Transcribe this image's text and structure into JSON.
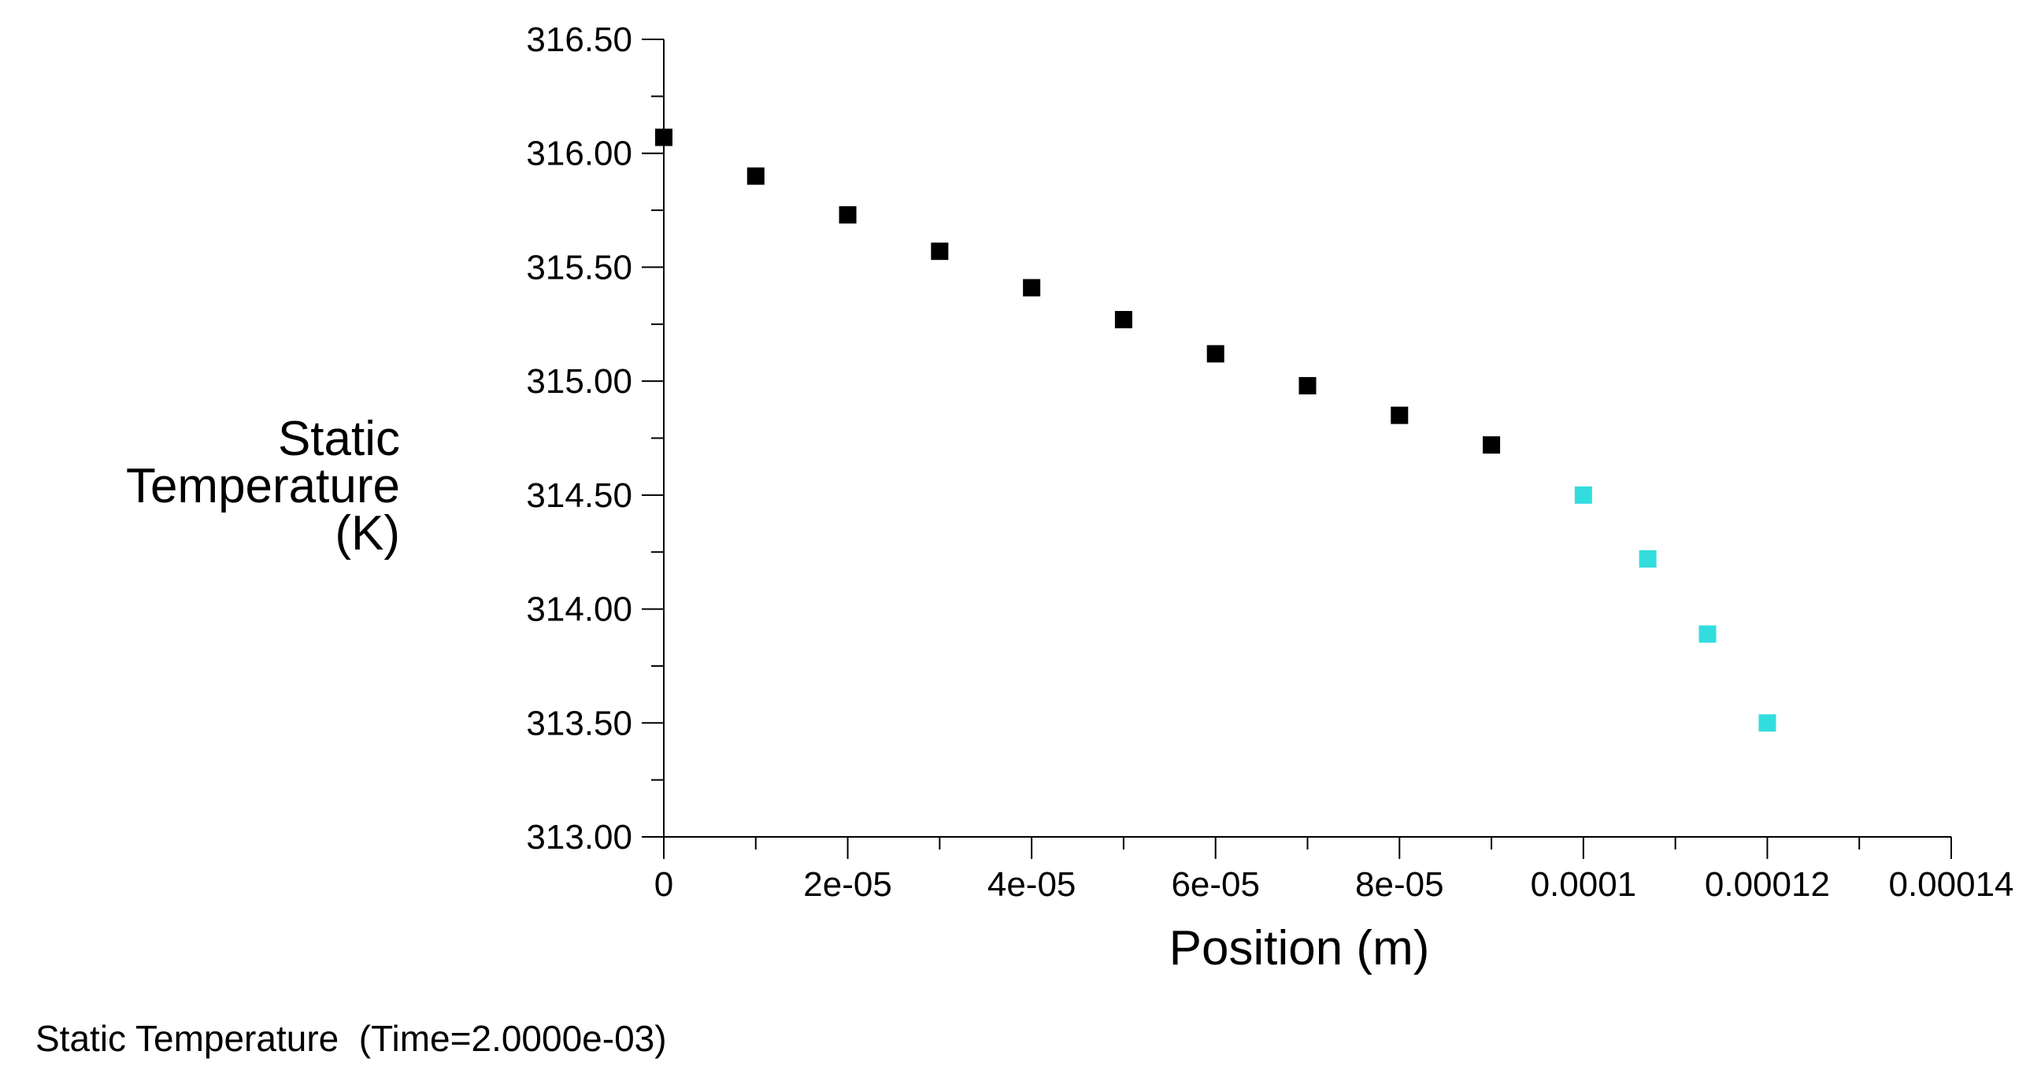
{
  "chart_data": {
    "type": "scatter",
    "caption": "Static Temperature  (Time=2.0000e-03)",
    "xlabel": "Position (m)",
    "ylabel_lines": [
      "Static",
      "Temperature",
      "(K)"
    ],
    "xlim": [
      0,
      0.00014
    ],
    "ylim": [
      313.0,
      316.5
    ],
    "x_ticks": [
      {
        "value": 0,
        "label": "0"
      },
      {
        "value": 2e-05,
        "label": "2e-05"
      },
      {
        "value": 4e-05,
        "label": "4e-05"
      },
      {
        "value": 6e-05,
        "label": "6e-05"
      },
      {
        "value": 8e-05,
        "label": "8e-05"
      },
      {
        "value": 0.0001,
        "label": "0.0001"
      },
      {
        "value": 0.00012,
        "label": "0.00012"
      },
      {
        "value": 0.00014,
        "label": "0.00014"
      }
    ],
    "y_ticks": [
      {
        "value": 313.0,
        "label": "313.00"
      },
      {
        "value": 313.5,
        "label": "313.50"
      },
      {
        "value": 314.0,
        "label": "314.00"
      },
      {
        "value": 314.5,
        "label": "314.50"
      },
      {
        "value": 315.0,
        "label": "315.00"
      },
      {
        "value": 315.5,
        "label": "315.50"
      },
      {
        "value": 316.0,
        "label": "316.00"
      },
      {
        "value": 316.5,
        "label": "316.50"
      }
    ],
    "series": [
      {
        "color": "#000000",
        "points": [
          [
            0.0,
            316.07
          ],
          [
            1e-05,
            315.9
          ],
          [
            2e-05,
            315.73
          ],
          [
            3e-05,
            315.57
          ],
          [
            4e-05,
            315.41
          ],
          [
            5e-05,
            315.27
          ],
          [
            6e-05,
            315.12
          ],
          [
            7e-05,
            314.98
          ],
          [
            8e-05,
            314.85
          ],
          [
            9e-05,
            314.72
          ]
        ]
      },
      {
        "color": "#33dddd",
        "points": [
          [
            0.0001,
            314.5
          ],
          [
            0.000107,
            314.22
          ],
          [
            0.0001135,
            313.89
          ],
          [
            0.00012,
            313.5
          ]
        ]
      }
    ]
  }
}
